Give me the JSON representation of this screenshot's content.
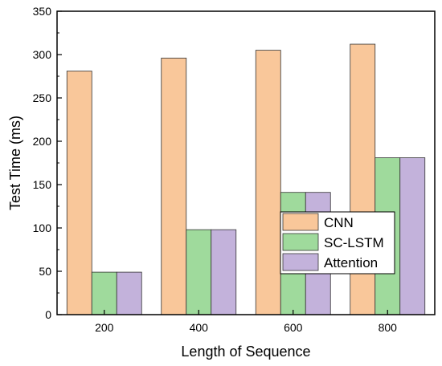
{
  "chart_data": {
    "type": "bar",
    "categories": [
      "200",
      "400",
      "600",
      "800"
    ],
    "series": [
      {
        "name": "CNN",
        "values": [
          281,
          296,
          305,
          312
        ],
        "color": "#F9C79A"
      },
      {
        "name": "SC-LSTM",
        "values": [
          49,
          98,
          141,
          181
        ],
        "color": "#9FDA9C"
      },
      {
        "name": "Attention",
        "values": [
          49,
          98,
          141,
          181
        ],
        "color": "#C3B2DB"
      }
    ],
    "xlabel": "Length of Sequence",
    "ylabel": "Test Time (ms)",
    "ylim": [
      0,
      350
    ],
    "yticks": [
      "0",
      "50",
      "100",
      "150",
      "200",
      "250",
      "300",
      "350"
    ],
    "grid": false,
    "legend_position": "right, mid-lower inside plot"
  }
}
